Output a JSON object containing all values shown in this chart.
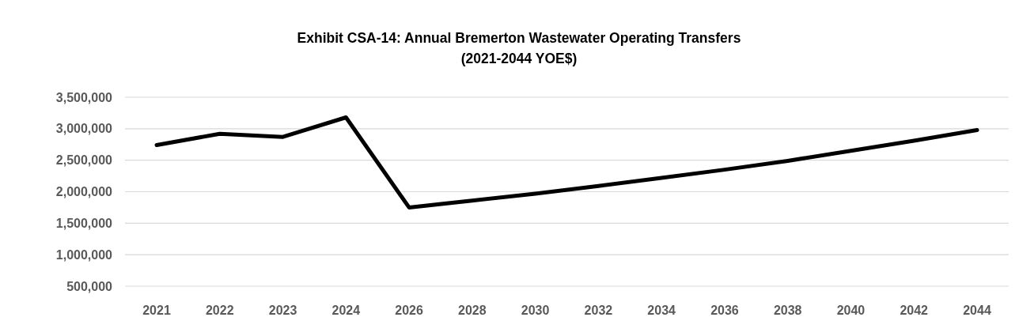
{
  "chart_data": {
    "type": "line",
    "title": "Exhibit CSA-14: Annual Bremerton Wastewater Operating Transfers",
    "subtitle": "(2021-2044 YOE$)",
    "categories": [
      "2021",
      "2022",
      "2023",
      "2024",
      "2026",
      "2028",
      "2030",
      "2032",
      "2034",
      "2036",
      "2038",
      "2040",
      "2042",
      "2044"
    ],
    "series": [
      {
        "color": "#000000",
        "values": [
          2740000,
          2920000,
          2870000,
          3180000,
          1750000,
          1860000,
          1970000,
          2090000,
          2220000,
          2350000,
          2490000,
          2650000,
          2810000,
          2980000
        ]
      }
    ],
    "ylim": [
      500000,
      3500000
    ],
    "yticks": [
      {
        "value": 500000,
        "label": "500,000"
      },
      {
        "value": 1000000,
        "label": "1,000,000"
      },
      {
        "value": 1500000,
        "label": "1,500,000"
      },
      {
        "value": 2000000,
        "label": "2,000,000"
      },
      {
        "value": 2500000,
        "label": "2,500,000"
      },
      {
        "value": 3000000,
        "label": "3,000,000"
      },
      {
        "value": 3500000,
        "label": "3,500,000"
      }
    ],
    "grid": "y",
    "marker": "none",
    "line_style": "solid"
  }
}
